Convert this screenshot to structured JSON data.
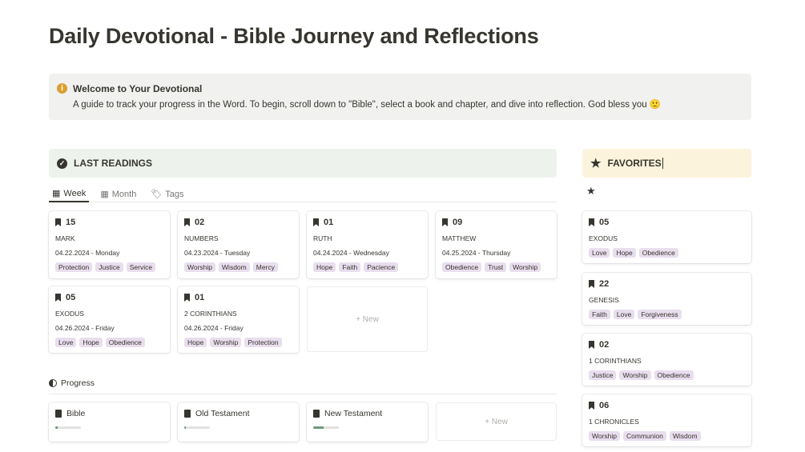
{
  "title": "Daily Devotional - Bible Journey and Reflections",
  "callout": {
    "icon": "info-icon",
    "title": "Welcome to Your Devotional",
    "text": "A guide to track your progress in the Word. To begin, scroll down to \"Bible\", select a book and chapter, and dive into reflection. God bless you 🙂"
  },
  "last_readings": {
    "heading": "LAST READINGS",
    "icon": "check-badge-icon",
    "color": "#edf3ec",
    "tabs": [
      {
        "label": "Week",
        "icon": "calendar-icon",
        "active": true
      },
      {
        "label": "Month",
        "icon": "calendar-icon"
      },
      {
        "label": "Tags",
        "icon": "tag-icon"
      }
    ],
    "cards": [
      {
        "chapter": "15",
        "book": "MARK",
        "date": "04.22.2024 - Monday",
        "tags": [
          "Protection",
          "Justice",
          "Service"
        ]
      },
      {
        "chapter": "02",
        "book": "NUMBERS",
        "date": "04.23.2024 - Tuesday",
        "tags": [
          "Worship",
          "Wisdom",
          "Mercy"
        ]
      },
      {
        "chapter": "01",
        "book": "RUTH",
        "date": "04.24.2024 - Wednesday",
        "tags": [
          "Hope",
          "Faith",
          "Pacience"
        ]
      },
      {
        "chapter": "09",
        "book": "MATTHEW",
        "date": "04.25.2024 - Thursday",
        "tags": [
          "Obedience",
          "Trust",
          "Worship"
        ]
      },
      {
        "chapter": "05",
        "book": "EXODUS",
        "date": "04.26.2024 - Friday",
        "tags": [
          "Love",
          "Hope",
          "Obedience"
        ]
      },
      {
        "chapter": "01",
        "book": "2 CORINTHIANS",
        "date": "04.26.2024 - Friday",
        "tags": [
          "Hope",
          "Worship",
          "Protection"
        ]
      }
    ],
    "new_label": "+ New"
  },
  "progress": {
    "heading": "Progress",
    "icon": "half-circle-icon",
    "items": [
      {
        "label": "Bible",
        "percent": 8
      },
      {
        "label": "Old Testament",
        "percent": 6
      },
      {
        "label": "New Testament",
        "percent": 40
      }
    ],
    "new_label": "+ New"
  },
  "favorites": {
    "heading": "FAVORITES",
    "icon": "star-icon",
    "color": "#fbf3db",
    "cards": [
      {
        "chapter": "05",
        "book": "EXODUS",
        "tags": [
          "Love",
          "Hope",
          "Obedience"
        ]
      },
      {
        "chapter": "22",
        "book": "GENESIS",
        "tags": [
          "Faith",
          "Love",
          "Forgiveness"
        ]
      },
      {
        "chapter": "02",
        "book": "1 CORINTHIANS",
        "tags": [
          "Justice",
          "Worship",
          "Obedience"
        ]
      },
      {
        "chapter": "06",
        "book": "1 CHRONICLES",
        "tags": [
          "Worship",
          "Communion",
          "Wisdom"
        ]
      }
    ]
  },
  "colors": {
    "tag_bg": "#e8deee",
    "progress_fill": "#6c9b7d"
  }
}
